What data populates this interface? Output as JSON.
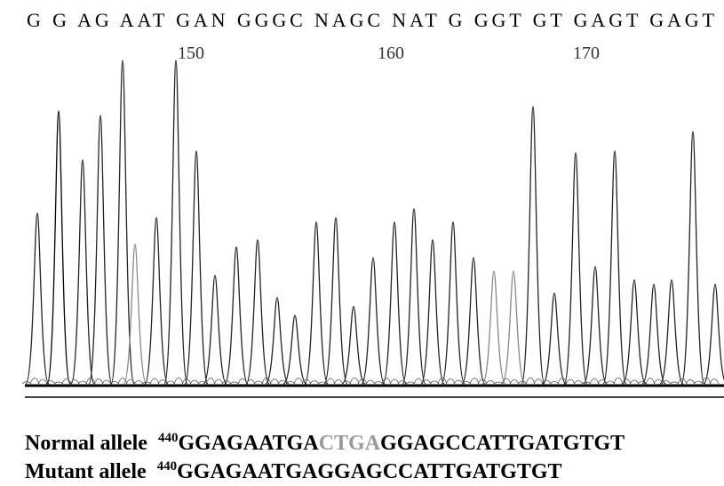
{
  "header": {
    "sequence": "G G AG AAT GAN GGGC NAGC NAT G GGT GT GAGT GAGT",
    "positions": [
      150,
      160,
      170
    ]
  },
  "alleles": [
    {
      "label": "Normal allele",
      "start": 440,
      "parts": [
        "GGAGAATGA",
        "CTGA",
        "GGAGCCATTGATGTGT"
      ]
    },
    {
      "label": "Mutant allele",
      "start": 440,
      "parts": [
        "GGAGAATGAGGAGCCATTGATGTGT"
      ]
    }
  ]
}
